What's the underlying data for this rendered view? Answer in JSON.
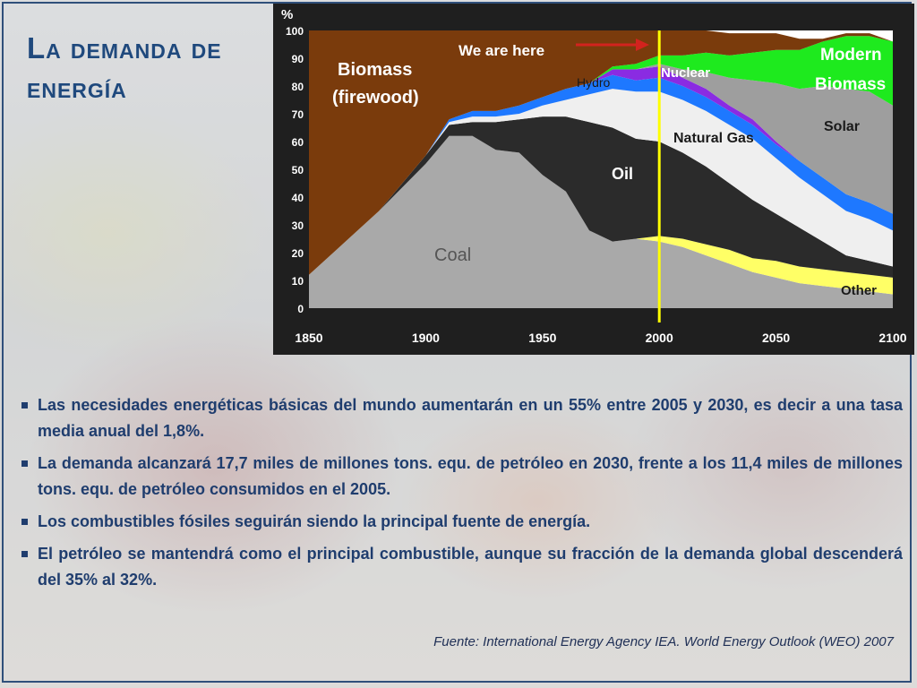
{
  "slide": {
    "title": "La demanda de energía",
    "bullets": [
      " Las necesidades energéticas básicas del mundo aumentarán en un 55% entre 2005 y 2030, es decir a una tasa media anual del 1,8%.",
      "La demanda alcanzará 17,7 miles de millones tons. equ. de petróleo en 2030, frente a los 11,4 miles de millones tons. equ. de petróleo consumidos en el 2005.",
      " Los combustibles fósiles seguirán siendo la principal fuente de energía.",
      "El petróleo se mantendrá como el principal combustible, aunque su fracción de la demanda global descenderá del 35% al 32%."
    ],
    "source": "Fuente: International Energy Agency IEA. World Energy Outlook (WEO) 2007"
  },
  "chart_data": {
    "type": "area",
    "ylabel": "%",
    "xlim": [
      1850,
      2100
    ],
    "ylim": [
      0,
      100
    ],
    "x_ticks": [
      1850,
      1900,
      1950,
      2000,
      2050,
      2100
    ],
    "y_ticks": [
      0,
      10,
      20,
      30,
      40,
      50,
      60,
      70,
      80,
      90,
      100
    ],
    "x": [
      1850,
      1880,
      1900,
      1910,
      1920,
      1930,
      1940,
      1950,
      1960,
      1970,
      1980,
      1990,
      2000,
      2010,
      2020,
      2030,
      2040,
      2050,
      2060,
      2070,
      2080,
      2090,
      2100
    ],
    "series": [
      {
        "name": "Coal",
        "color": "#a9a9a9",
        "values": [
          12,
          35,
          52,
          62,
          62,
          57,
          56,
          48,
          42,
          28,
          24,
          25,
          24,
          22,
          19,
          16,
          13,
          11,
          9,
          8,
          7,
          6,
          5
        ]
      },
      {
        "name": "Other",
        "color": "#ffff66",
        "values": [
          0,
          0,
          0,
          0,
          0,
          0,
          0,
          0,
          0,
          0,
          0,
          0,
          2,
          3,
          4,
          5,
          5,
          6,
          6,
          6,
          6,
          6,
          6
        ]
      },
      {
        "name": "Oil",
        "color": "#2b2b2b",
        "values": [
          0,
          0,
          3,
          4,
          5,
          10,
          12,
          21,
          27,
          39,
          41,
          36,
          34,
          31,
          28,
          24,
          21,
          17,
          14,
          10,
          6,
          5,
          4
        ]
      },
      {
        "name": "Natural Gas",
        "color": "#efefef",
        "values": [
          0,
          0,
          0,
          1,
          2,
          2,
          2,
          4,
          6,
          10,
          14,
          17,
          18,
          19,
          20,
          21,
          22,
          20,
          18,
          17,
          16,
          15,
          13
        ]
      },
      {
        "name": "Hydro",
        "color": "#1e78ff",
        "values": [
          0,
          0,
          0,
          1,
          2,
          2,
          3,
          3,
          4,
          4,
          5,
          4,
          5,
          5,
          5,
          5,
          5,
          5,
          6,
          6,
          6,
          6,
          6
        ]
      },
      {
        "name": "Nuclear",
        "color": "#8a2be2",
        "values": [
          0,
          0,
          0,
          0,
          0,
          0,
          0,
          0,
          0,
          0,
          2,
          4,
          4,
          3,
          3,
          2,
          2,
          1,
          0,
          0,
          0,
          0,
          0
        ]
      },
      {
        "name": "Solar",
        "color": "#9e9e9e",
        "values": [
          0,
          0,
          0,
          0,
          0,
          0,
          0,
          0,
          0,
          0,
          0,
          0,
          1,
          3,
          6,
          10,
          14,
          21,
          26,
          33,
          38,
          40,
          39
        ]
      },
      {
        "name": "Modern Biomass",
        "color": "#1eea1e",
        "values": [
          0,
          0,
          0,
          0,
          0,
          0,
          0,
          0,
          0,
          0,
          1,
          2,
          3,
          5,
          7,
          8,
          10,
          12,
          14,
          16,
          19,
          20,
          23
        ]
      },
      {
        "name": "Biomass (firewood)",
        "color": "#7a3b0c",
        "values": [
          88,
          65,
          45,
          32,
          29,
          29,
          27,
          24,
          21,
          19,
          13,
          12,
          9,
          9,
          8,
          8,
          7,
          6,
          4,
          1,
          1,
          1,
          0
        ]
      }
    ],
    "annotations": [
      {
        "text": "We are here",
        "x": 2000,
        "color": "#ffff00"
      }
    ],
    "labels": {
      "biomass_line1": "Biomass",
      "biomass_line2": "(firewood)",
      "hydro": "Hydro",
      "nuclear": "Nuclear",
      "modern_line1": "Modern",
      "modern_line2": "Biomass",
      "solar": "Solar",
      "natural_gas": "Natural Gas",
      "oil": "Oil",
      "coal": "Coal",
      "other": "Other"
    }
  }
}
